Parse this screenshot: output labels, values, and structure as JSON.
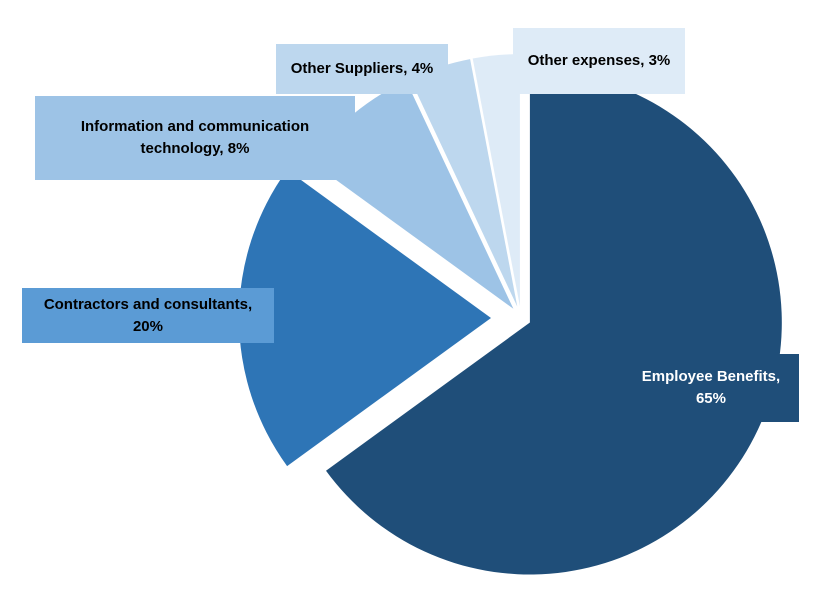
{
  "chart_data": {
    "type": "pie",
    "title": "",
    "slices": [
      {
        "label": "Employee Benefits",
        "value": 65,
        "display": "Employee Benefits, 65%",
        "color": "#1f4e79",
        "label_bg": "#1f4e79"
      },
      {
        "label": "Contractors and consultants",
        "value": 20,
        "display": "Contractors and consultants, 20%",
        "color": "#2e75b6",
        "label_bg": "#5b9bd5"
      },
      {
        "label": "Information and communication technology",
        "value": 8,
        "display": "Information and communication technology, 8%",
        "color": "#9dc3e6",
        "label_bg": "#9dc3e6"
      },
      {
        "label": "Other Suppliers",
        "value": 4,
        "display": "Other Suppliers, 4%",
        "color": "#bdd7ee",
        "label_bg": "#bdd7ee"
      },
      {
        "label": "Other expenses",
        "value": 3,
        "display": "Other expenses, 3%",
        "color": "#deebf7",
        "label_bg": "#deebf7"
      }
    ],
    "labels": {
      "employee_benefits": [
        "Employee Benefits,",
        "65%"
      ],
      "contractors": [
        "Contractors and consultants,",
        "20%"
      ],
      "ict": [
        "Information and communication",
        "technology, 8%"
      ],
      "other_suppliers": [
        "Other Suppliers, 4%"
      ],
      "other_expenses": [
        "Other expenses, 3%"
      ]
    },
    "exploded": true,
    "legend": "none"
  }
}
